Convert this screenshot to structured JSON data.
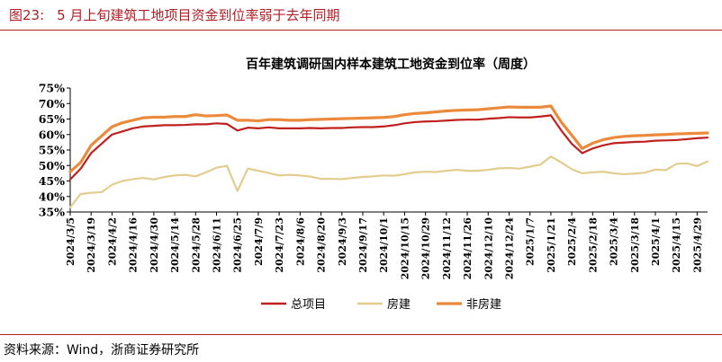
{
  "header": {
    "figure_label": "图23:",
    "figure_title": "5 月上旬建筑工地项目资金到位率弱于去年同期"
  },
  "footer": {
    "source": "资料来源：Wind，浙商证券研究所"
  },
  "colors": {
    "accent": "#b01d24",
    "total": "#c0211f",
    "housing": "#e3cd8e",
    "non_housing": "#ec8a3c",
    "axis": "#000000"
  },
  "chart_data": {
    "type": "line",
    "title": "百年建筑调研国内样本建筑工地资金到位率（周度）",
    "xlabel": "",
    "ylabel": "",
    "ylim": [
      35,
      75
    ],
    "yticks": [
      35,
      40,
      45,
      50,
      55,
      60,
      65,
      70,
      75
    ],
    "ytick_labels": [
      "35%",
      "40%",
      "45%",
      "50%",
      "55%",
      "60%",
      "65%",
      "70%",
      "75%"
    ],
    "legend_position": "bottom",
    "grid": false,
    "x": [
      "2024/3/5",
      "2024/3/12",
      "2024/3/19",
      "2024/3/26",
      "2024/4/2",
      "2024/4/9",
      "2024/4/16",
      "2024/4/23",
      "2024/4/30",
      "2024/5/7",
      "2024/5/14",
      "2024/5/21",
      "2024/5/28",
      "2024/6/4",
      "2024/6/11",
      "2024/6/18",
      "2024/6/25",
      "2024/7/2",
      "2024/7/9",
      "2024/7/16",
      "2024/7/23",
      "2024/7/30",
      "2024/8/6",
      "2024/8/13",
      "2024/8/20",
      "2024/8/27",
      "2024/9/3",
      "2024/9/10",
      "2024/9/17",
      "2024/9/24",
      "2024/10/1",
      "2024/10/8",
      "2024/10/15",
      "2024/10/22",
      "2024/10/29",
      "2024/11/5",
      "2024/11/12",
      "2024/11/19",
      "2024/11/26",
      "2024/12/3",
      "2024/12/10",
      "2024/12/17",
      "2024/12/24",
      "2024/12/31",
      "2025/1/7",
      "2025/1/14",
      "2025/1/21",
      "2025/1/28",
      "2025/2/4",
      "2025/2/11",
      "2025/2/18",
      "2025/2/25",
      "2025/3/4",
      "2025/3/11",
      "2025/3/18",
      "2025/3/25",
      "2025/4/1",
      "2025/4/8",
      "2025/4/15",
      "2025/4/22",
      "2025/4/29",
      "2025/5/6"
    ],
    "xtick_labels": [
      "2024/3/5",
      "2024/3/19",
      "2024/4/2",
      "2024/4/16",
      "2024/4/30",
      "2024/5/14",
      "2024/5/28",
      "2024/6/11",
      "2024/6/25",
      "2024/7/9",
      "2024/7/23",
      "2024/8/6",
      "2024/8/20",
      "2024/9/3",
      "2024/9/17",
      "2024/10/1",
      "2024/10/15",
      "2024/10/29",
      "2024/11/12",
      "2024/11/26",
      "2024/12/10",
      "2024/12/24",
      "2025/1/7",
      "2025/1/21",
      "2025/2/4",
      "2025/2/18",
      "2025/3/4",
      "2025/3/18",
      "2025/4/1",
      "2025/4/15",
      "2025/4/29"
    ],
    "series": [
      {
        "name": "总项目",
        "color": "#c0211f",
        "values": [
          45.5,
          49.0,
          54.0,
          57.0,
          60.0,
          61.0,
          62.0,
          62.6,
          62.8,
          63.0,
          63.0,
          63.1,
          63.3,
          63.3,
          63.6,
          63.4,
          61.3,
          62.2,
          62.0,
          62.3,
          62.0,
          62.0,
          62.0,
          62.1,
          62.0,
          62.1,
          62.1,
          62.3,
          62.4,
          62.4,
          62.6,
          63.0,
          63.6,
          64.0,
          64.2,
          64.3,
          64.5,
          64.7,
          64.8,
          64.8,
          65.1,
          65.3,
          65.6,
          65.5,
          65.5,
          65.8,
          66.2,
          61.3,
          57.0,
          54.0,
          55.5,
          56.5,
          57.2,
          57.4,
          57.6,
          57.7,
          58.0,
          58.1,
          58.2,
          58.5,
          58.8,
          59.0
        ]
      },
      {
        "name": "房建",
        "color": "#e3cd8e",
        "values": [
          36.5,
          40.8,
          41.2,
          41.4,
          43.8,
          45.0,
          45.6,
          46.0,
          45.5,
          46.3,
          46.8,
          47.0,
          46.5,
          47.8,
          49.3,
          49.9,
          41.8,
          49.0,
          48.3,
          47.6,
          46.8,
          47.0,
          46.8,
          46.4,
          45.7,
          45.7,
          45.6,
          46.0,
          46.3,
          46.5,
          46.8,
          46.7,
          47.2,
          47.8,
          48.0,
          47.9,
          48.3,
          48.6,
          48.3,
          48.3,
          48.6,
          49.1,
          49.2,
          49.0,
          49.6,
          50.3,
          52.9,
          51.0,
          48.8,
          47.5,
          47.8,
          48.0,
          47.5,
          47.2,
          47.4,
          47.7,
          48.7,
          48.5,
          50.5,
          50.7,
          49.8,
          51.3
        ]
      },
      {
        "name": "非房建",
        "color": "#ec8a3c",
        "values": [
          48.0,
          51.0,
          56.5,
          59.5,
          62.5,
          63.8,
          64.6,
          65.4,
          65.6,
          65.6,
          65.8,
          65.8,
          66.4,
          66.0,
          66.1,
          66.3,
          64.6,
          64.6,
          64.4,
          64.8,
          64.8,
          64.6,
          64.6,
          64.8,
          64.9,
          65.0,
          65.1,
          65.2,
          65.3,
          65.4,
          65.5,
          65.8,
          66.4,
          66.8,
          67.0,
          67.3,
          67.6,
          67.8,
          67.9,
          68.0,
          68.3,
          68.6,
          68.9,
          68.8,
          68.8,
          68.8,
          69.2,
          64.0,
          59.8,
          55.5,
          57.2,
          58.3,
          59.0,
          59.4,
          59.6,
          59.7,
          59.9,
          60.0,
          60.2,
          60.3,
          60.4,
          60.5
        ]
      }
    ]
  }
}
